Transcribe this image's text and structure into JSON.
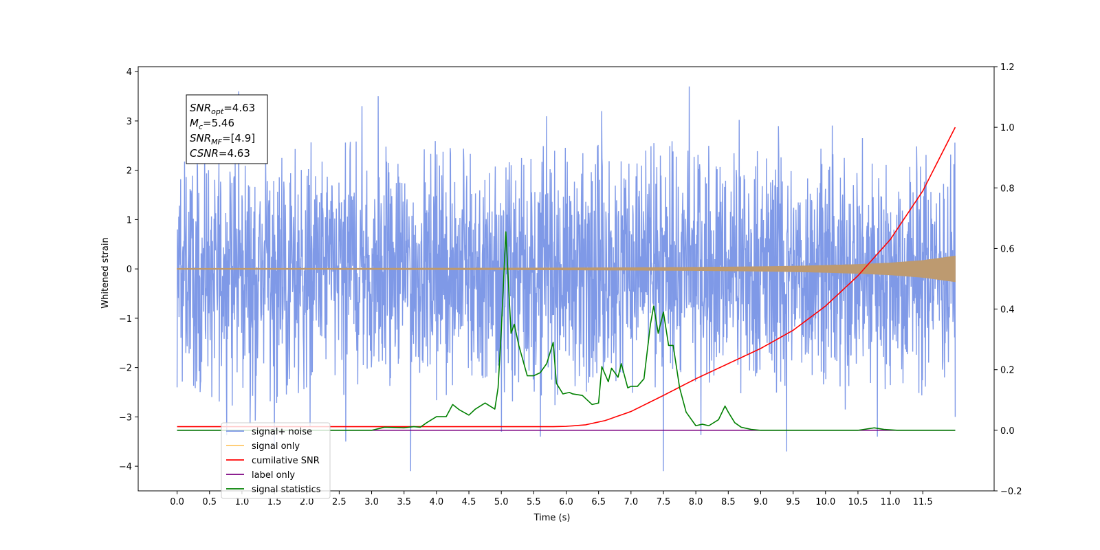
{
  "chart_data": {
    "type": "line",
    "xlabel": "Time (s)",
    "ylabel": "Whitened strain",
    "xlim": [
      -0.6,
      12.6
    ],
    "ylim": [
      -4.5,
      4.1
    ],
    "y2lim": [
      -0.2,
      1.2
    ],
    "xticks": [
      0.0,
      0.5,
      1.0,
      1.5,
      2.0,
      2.5,
      3.0,
      3.5,
      4.0,
      4.5,
      5.0,
      5.5,
      6.0,
      6.5,
      7.0,
      7.5,
      8.0,
      8.5,
      9.0,
      9.5,
      10.0,
      10.5,
      11.0,
      11.5
    ],
    "xtick_labels": [
      "0.0",
      "0.5",
      "1.0",
      "1.5",
      "2.0",
      "2.5",
      "3.0",
      "3.5",
      "4.0",
      "4.5",
      "5.0",
      "5.5",
      "6.0",
      "6.5",
      "7.0",
      "7.5",
      "8.0",
      "8.5",
      "9.0",
      "9.5",
      "10.0",
      "10.5",
      "11.0",
      "11.5"
    ],
    "yticks": [
      -4,
      -3,
      -2,
      -1,
      0,
      1,
      2,
      3,
      4
    ],
    "ytick_labels": [
      "−4",
      "−3",
      "−2",
      "−1",
      "0",
      "1",
      "2",
      "3",
      "4"
    ],
    "y2ticks": [
      -0.2,
      0.0,
      0.2,
      0.4,
      0.6,
      0.8,
      1.0,
      1.2
    ],
    "y2tick_labels": [
      "−0.2",
      "0.0",
      "0.2",
      "0.4",
      "0.6",
      "0.8",
      "1.0",
      "1.2"
    ],
    "grid": false,
    "legend_position": "lower-left",
    "annotation": {
      "lines": [
        {
          "base": "SNR",
          "sub": "opt",
          "value": "=4.63"
        },
        {
          "base": "M",
          "sub": "c",
          "value": "=5.46"
        },
        {
          "base": "SNR",
          "sub": "MF",
          "value": "=[4.9]"
        },
        {
          "base": "CSNR",
          "sub": "",
          "value": "=4.63"
        }
      ]
    },
    "series": [
      {
        "name": "signal+ noise",
        "axis": "left",
        "color": "#7893e6",
        "style": "dense noise",
        "x_range": [
          0.0,
          12.0
        ],
        "typical_range": [
          -1.8,
          1.8
        ],
        "peaks": [
          {
            "x": 0.0,
            "y": -2.4
          },
          {
            "x": 0.95,
            "y": 3.6
          },
          {
            "x": 1.5,
            "y": -3.6
          },
          {
            "x": 2.05,
            "y": -3.2
          },
          {
            "x": 2.6,
            "y": -3.5
          },
          {
            "x": 2.85,
            "y": 3.3
          },
          {
            "x": 3.1,
            "y": 3.5
          },
          {
            "x": 3.6,
            "y": -4.1
          },
          {
            "x": 5.0,
            "y": -3.3
          },
          {
            "x": 5.6,
            "y": -3.4
          },
          {
            "x": 6.55,
            "y": 3.2
          },
          {
            "x": 7.5,
            "y": -4.1
          },
          {
            "x": 7.9,
            "y": 3.7
          },
          {
            "x": 9.4,
            "y": -3.7
          },
          {
            "x": 10.8,
            "y": -3.4
          },
          {
            "x": 12.0,
            "y": -3.0
          }
        ]
      },
      {
        "name": "signal only",
        "axis": "left",
        "color": "#bd9a70",
        "style": "chirp envelope",
        "x": [
          0.0,
          1.0,
          2.0,
          3.0,
          4.0,
          5.0,
          6.0,
          7.0,
          8.0,
          8.5,
          9.0,
          9.5,
          10.0,
          10.5,
          11.0,
          11.5,
          12.0
        ],
        "amplitude": [
          0.01,
          0.01,
          0.01,
          0.012,
          0.014,
          0.016,
          0.02,
          0.025,
          0.032,
          0.038,
          0.045,
          0.055,
          0.07,
          0.09,
          0.12,
          0.17,
          0.26
        ]
      },
      {
        "name": "cumilative SNR",
        "axis": "right",
        "color": "#ff0000",
        "x": [
          0.0,
          5.8,
          6.0,
          6.3,
          6.6,
          7.0,
          7.5,
          8.0,
          8.5,
          9.0,
          9.5,
          10.0,
          10.5,
          11.0,
          11.5,
          12.0
        ],
        "values": [
          0.012,
          0.012,
          0.013,
          0.018,
          0.032,
          0.062,
          0.115,
          0.17,
          0.22,
          0.27,
          0.33,
          0.41,
          0.51,
          0.63,
          0.79,
          1.0
        ]
      },
      {
        "name": "label only",
        "axis": "right",
        "color": "#7b0080",
        "x": [
          0.0,
          12.0
        ],
        "values": [
          0.0,
          0.0
        ]
      },
      {
        "name": "signal statistics",
        "axis": "right",
        "color": "#008000",
        "x": [
          0.0,
          3.0,
          3.2,
          3.5,
          3.65,
          3.75,
          3.85,
          4.0,
          4.15,
          4.25,
          4.35,
          4.5,
          4.6,
          4.75,
          4.9,
          4.95,
          5.0,
          5.07,
          5.15,
          5.2,
          5.27,
          5.4,
          5.5,
          5.6,
          5.7,
          5.8,
          5.85,
          5.95,
          6.05,
          6.1,
          6.25,
          6.4,
          6.5,
          6.55,
          6.65,
          6.7,
          6.8,
          6.85,
          6.95,
          7.0,
          7.1,
          7.2,
          7.3,
          7.35,
          7.42,
          7.5,
          7.58,
          7.65,
          7.75,
          7.85,
          8.0,
          8.1,
          8.2,
          8.35,
          8.45,
          8.5,
          8.6,
          8.7,
          8.85,
          9.0,
          10.5,
          10.75,
          10.9,
          11.1,
          12.0
        ],
        "values": [
          0.0,
          0.0,
          0.01,
          0.008,
          0.012,
          0.01,
          0.025,
          0.045,
          0.045,
          0.085,
          0.068,
          0.05,
          0.07,
          0.09,
          0.07,
          0.14,
          0.33,
          0.655,
          0.32,
          0.35,
          0.28,
          0.18,
          0.18,
          0.19,
          0.22,
          0.29,
          0.155,
          0.12,
          0.125,
          0.12,
          0.115,
          0.085,
          0.09,
          0.21,
          0.16,
          0.205,
          0.175,
          0.22,
          0.14,
          0.145,
          0.145,
          0.17,
          0.35,
          0.41,
          0.32,
          0.39,
          0.28,
          0.28,
          0.14,
          0.06,
          0.015,
          0.02,
          0.015,
          0.035,
          0.08,
          0.06,
          0.025,
          0.01,
          0.003,
          0.0,
          0.0,
          0.008,
          0.003,
          0.0,
          0.0
        ]
      }
    ]
  }
}
